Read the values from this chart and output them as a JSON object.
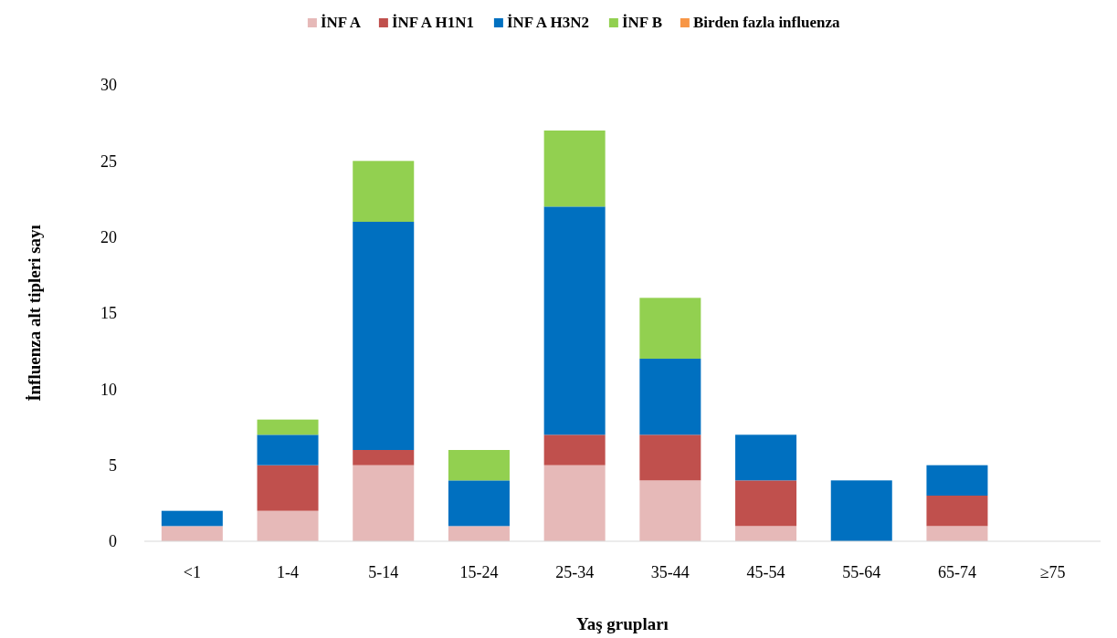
{
  "chart_data": {
    "type": "bar",
    "stacked": true,
    "xlabel": "Yaş grupları",
    "ylabel": "İnfluenza alt tipleri sayı",
    "categories": [
      "<1",
      "1-4",
      "5-14",
      "15-24",
      "25-34",
      "35-44",
      "45-54",
      "55-64",
      "65-74",
      "≥75"
    ],
    "series": [
      {
        "name": "İNF A",
        "color": "#e6b9b8",
        "values": [
          1,
          2,
          5,
          1,
          5,
          4,
          1,
          0,
          1,
          0
        ]
      },
      {
        "name": "İNF A H1N1",
        "color": "#c0504d",
        "values": [
          0,
          3,
          1,
          0,
          2,
          3,
          3,
          0,
          2,
          0
        ]
      },
      {
        "name": "İNF A H3N2",
        "color": "#0070c0",
        "values": [
          1,
          2,
          15,
          3,
          15,
          5,
          3,
          4,
          2,
          0
        ]
      },
      {
        "name": "İNF B",
        "color": "#92d050",
        "values": [
          0,
          1,
          4,
          2,
          5,
          4,
          0,
          0,
          0,
          0
        ]
      },
      {
        "name": "Birden fazla influenza",
        "color": "#f79646",
        "values": [
          0,
          0,
          0,
          0,
          0,
          0,
          0,
          0,
          0,
          0
        ]
      }
    ],
    "ylim": [
      0,
      30
    ],
    "yticks": [
      0,
      5,
      10,
      15,
      20,
      25,
      30
    ],
    "grid": false,
    "legend": "top"
  }
}
